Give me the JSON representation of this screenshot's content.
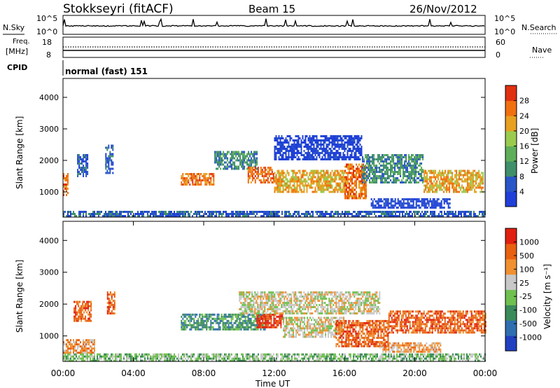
{
  "header": {
    "station": "Stokkseyri (fitACF)",
    "beam": "Beam 15",
    "date": "26/Nov/2012"
  },
  "noise_panel": {
    "left_label": "N.Sky",
    "right_label": "N.Search",
    "left_ticks": [
      "10^5",
      "10^0"
    ],
    "right_ticks": [
      "10^5",
      "10^0"
    ]
  },
  "freq_panel": {
    "left_label_line1": "Freq.",
    "left_label_line2": "[MHz]",
    "left_ticks": [
      "18",
      "8"
    ],
    "right_ticks": [
      "60",
      "0"
    ],
    "right_label": "Nave"
  },
  "cpid_panel": {
    "label": "CPID",
    "text": "normal (fast) 151"
  },
  "x_axis": {
    "label": "Time UT",
    "ticks": [
      "00:00",
      "04:00",
      "08:00",
      "12:00",
      "16:00",
      "20:00",
      "00:00"
    ]
  },
  "colors": {
    "power_scale": [
      "#1f3fd8",
      "#2a55c8",
      "#3f8f6a",
      "#5fae5a",
      "#9acb4e",
      "#e8a020",
      "#f07010",
      "#e03010"
    ],
    "velocity_scale": [
      "#2040c0",
      "#2f6fb0",
      "#3a8a5a",
      "#70c050",
      "#c8c8c8",
      "#f09030",
      "#e86010",
      "#e02010"
    ]
  },
  "chart_data": [
    {
      "type": "heatmap",
      "title": "",
      "xlabel": "Time UT",
      "ylabel": "Slant Range [km]",
      "y_ticks": [
        "1000",
        "2000",
        "3000",
        "4000"
      ],
      "colorbar_label": "Power [dB]",
      "colorbar_ticks": [
        "4",
        "8",
        "12",
        "16",
        "20",
        "24",
        "28"
      ],
      "ylim": [
        200,
        4600
      ],
      "xlim_hours": [
        0,
        24
      ],
      "regions": [
        {
          "t0": 0.0,
          "t1": 0.25,
          "r0": 900,
          "r1": 1600,
          "level": 6
        },
        {
          "t0": 0.8,
          "t1": 1.4,
          "r0": 1500,
          "r1": 2200,
          "level": 1
        },
        {
          "t0": 2.4,
          "t1": 2.8,
          "r0": 1600,
          "r1": 2500,
          "level": 1
        },
        {
          "t0": 6.7,
          "t1": 8.6,
          "r0": 1200,
          "r1": 1600,
          "level": 6
        },
        {
          "t0": 8.6,
          "t1": 11.0,
          "r0": 1700,
          "r1": 2300,
          "level": 2
        },
        {
          "t0": 10.5,
          "t1": 12.0,
          "r0": 1300,
          "r1": 1800,
          "level": 6
        },
        {
          "t0": 12.0,
          "t1": 16.0,
          "r0": 1000,
          "r1": 1700,
          "level": 5
        },
        {
          "t0": 12.0,
          "t1": 17.0,
          "r0": 2000,
          "r1": 2800,
          "level": 0
        },
        {
          "t0": 16.0,
          "t1": 17.2,
          "r0": 800,
          "r1": 1900,
          "level": 6
        },
        {
          "t0": 17.0,
          "t1": 20.5,
          "r0": 1300,
          "r1": 2200,
          "level": 2
        },
        {
          "t0": 20.5,
          "t1": 23.9,
          "r0": 1000,
          "r1": 1700,
          "level": 5
        },
        {
          "t0": 17.5,
          "t1": 22.0,
          "r0": 500,
          "r1": 800,
          "level": 0
        },
        {
          "t0": 0.0,
          "t1": 24.0,
          "r0": 200,
          "r1": 400,
          "level": 1
        }
      ]
    },
    {
      "type": "heatmap",
      "title": "",
      "xlabel": "Time UT",
      "ylabel": "Slant Range [km]",
      "y_ticks": [
        "1000",
        "2000",
        "3000",
        "4000"
      ],
      "colorbar_label": "Velocity [m s⁻¹]",
      "colorbar_ticks": [
        "1000",
        "500",
        "100",
        "25",
        "-25",
        "-100",
        "-500",
        "-1000"
      ],
      "ylim": [
        200,
        4600
      ],
      "xlim_hours": [
        0,
        24
      ],
      "regions": [
        {
          "t0": 0.0,
          "t1": 1.8,
          "r0": 500,
          "r1": 900,
          "level": 5
        },
        {
          "t0": 0.6,
          "t1": 1.6,
          "r0": 1500,
          "r1": 2100,
          "level": 6
        },
        {
          "t0": 2.5,
          "t1": 2.9,
          "r0": 1700,
          "r1": 2400,
          "level": 6
        },
        {
          "t0": 6.7,
          "t1": 8.5,
          "r0": 1200,
          "r1": 1700,
          "level": 2
        },
        {
          "t0": 8.5,
          "t1": 11.5,
          "r0": 1200,
          "r1": 1700,
          "level": 2
        },
        {
          "t0": 11.0,
          "t1": 12.5,
          "r0": 1300,
          "r1": 1700,
          "level": 7
        },
        {
          "t0": 10.0,
          "t1": 18.0,
          "r0": 1700,
          "r1": 2400,
          "level": 4
        },
        {
          "t0": 12.5,
          "t1": 16.0,
          "r0": 1000,
          "r1": 1600,
          "level": 4
        },
        {
          "t0": 15.5,
          "t1": 18.5,
          "r0": 700,
          "r1": 1500,
          "level": 6
        },
        {
          "t0": 18.5,
          "t1": 24.0,
          "r0": 1100,
          "r1": 1800,
          "level": 6
        },
        {
          "t0": 18.0,
          "t1": 21.5,
          "r0": 500,
          "r1": 800,
          "level": 5
        },
        {
          "t0": 0.0,
          "t1": 24.0,
          "r0": 200,
          "r1": 450,
          "level": 3
        }
      ]
    }
  ]
}
